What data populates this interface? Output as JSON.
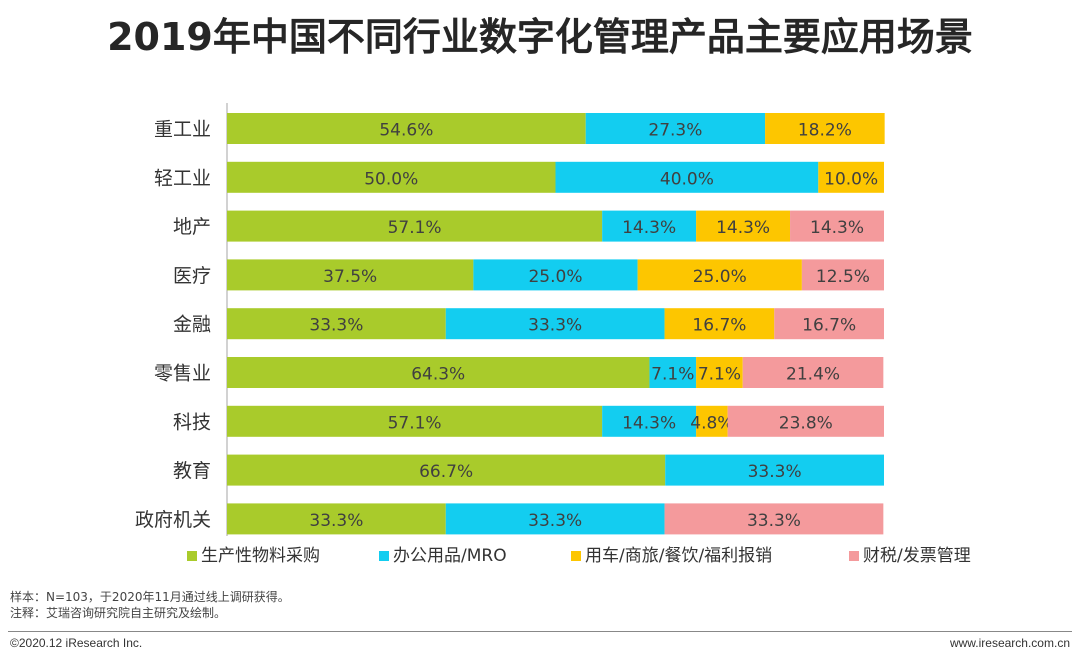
{
  "title": "2019年中国不同行业数字化管理产品主要应用场景",
  "chart_data": {
    "type": "bar",
    "orientation": "horizontal",
    "stacked": true,
    "percent": true,
    "categories": [
      "重工业",
      "轻工业",
      "地产",
      "医疗",
      "金融",
      "零售业",
      "科技",
      "教育",
      "政府机关"
    ],
    "series": [
      {
        "name": "生产性物料采购",
        "color": "#a9cb2b",
        "values": [
          54.6,
          50.0,
          57.1,
          37.5,
          33.3,
          64.3,
          57.1,
          66.7,
          33.3
        ],
        "labels": [
          "54.6%",
          "50.0%",
          "57.1%",
          "37.5%",
          "33.3%",
          "64.3%",
          "57.1%",
          "66.7%",
          "33.3%"
        ]
      },
      {
        "name": "办公用品/MRO",
        "color": "#13cdf0",
        "values": [
          27.3,
          40.0,
          14.3,
          25.0,
          33.3,
          7.1,
          14.3,
          33.3,
          33.3
        ],
        "labels": [
          "27.3%",
          "40.0%",
          "14.3%",
          "25.0%",
          "33.3%",
          "7.1%",
          "14.3%",
          "33.3%",
          "33.3%"
        ]
      },
      {
        "name": "用车/商旅/餐饮/福利报销",
        "color": "#fdc600",
        "values": [
          18.2,
          10.0,
          14.3,
          25.0,
          16.7,
          7.1,
          4.8,
          0,
          0
        ],
        "labels": [
          "18.2%",
          "10.0%",
          "14.3%",
          "25.0%",
          "16.7%",
          "7.1%",
          "4.8%",
          "",
          ""
        ]
      },
      {
        "name": "财税/发票管理",
        "color": "#f49a9c",
        "values": [
          0,
          0,
          14.3,
          12.5,
          16.7,
          21.4,
          23.8,
          0,
          33.3
        ],
        "labels": [
          "",
          "",
          "14.3%",
          "12.5%",
          "16.7%",
          "21.4%",
          "23.8%",
          "",
          "33.3%"
        ]
      }
    ],
    "xlim": [
      0,
      100
    ],
    "legend_position": "bottom"
  },
  "notes": {
    "sample": "样本：N=103，于2020年11月通过线上调研获得。",
    "source": "注释：艾瑞咨询研究院自主研究及绘制。"
  },
  "footer": {
    "left": "©2020.12 iResearch Inc.",
    "right": "www.iresearch.com.cn"
  }
}
